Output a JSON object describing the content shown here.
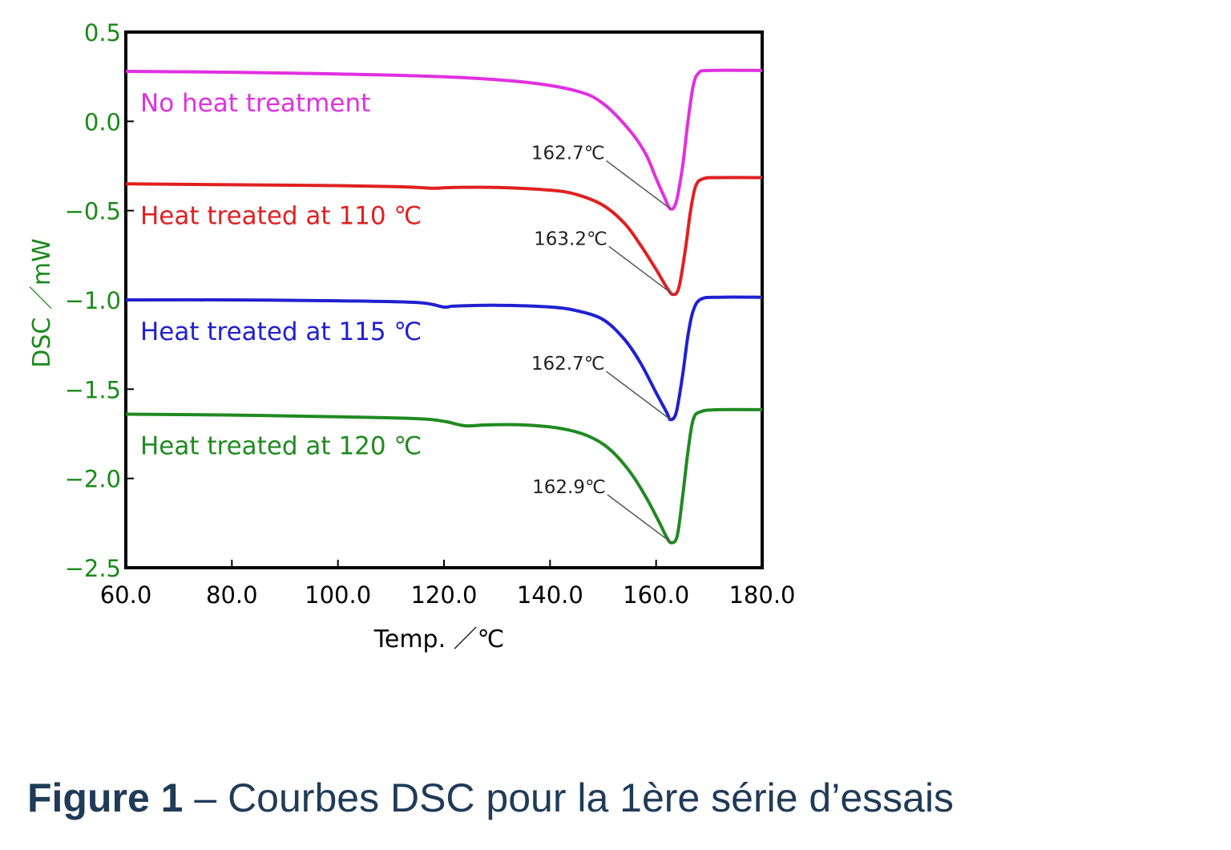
{
  "caption": {
    "bold": "Figure 1",
    "rest": " – Courbes DSC pour la 1ère série d’essais"
  },
  "chart_data": {
    "type": "line",
    "xlabel": "Temp. ／℃",
    "ylabel": "DSC ／mW",
    "xlim": [
      60,
      180
    ],
    "ylim": [
      -2.5,
      0.5
    ],
    "x_ticks": [
      60,
      80,
      100,
      120,
      140,
      160,
      180
    ],
    "x_tick_labels": [
      "60.0",
      "80.0",
      "100.0",
      "120.0",
      "140.0",
      "160.0",
      "180.0"
    ],
    "y_ticks": [
      0.5,
      0.0,
      -0.5,
      -1.0,
      -1.5,
      -2.0,
      -2.5
    ],
    "y_tick_labels": [
      "0.5",
      "0.0",
      "−0.5",
      "−1.0",
      "−1.5",
      "−2.0",
      "−2.5"
    ],
    "axis_color": "#1a8a1a",
    "grid": false,
    "series": [
      {
        "name": "No heat treatment",
        "color": "#e030e0",
        "points": [
          [
            60,
            0.28
          ],
          [
            80,
            0.275
          ],
          [
            100,
            0.265
          ],
          [
            120,
            0.25
          ],
          [
            135,
            0.22
          ],
          [
            145,
            0.17
          ],
          [
            150,
            0.1
          ],
          [
            155,
            -0.05
          ],
          [
            158,
            -0.18
          ],
          [
            160,
            -0.32
          ],
          [
            161.5,
            -0.42
          ],
          [
            162.7,
            -0.49
          ],
          [
            163.8,
            -0.45
          ],
          [
            165,
            -0.25
          ],
          [
            166,
            -0.0
          ],
          [
            167,
            0.2
          ],
          [
            168,
            0.27
          ],
          [
            170,
            0.285
          ],
          [
            180,
            0.285
          ]
        ],
        "peak": {
          "x": 162.7,
          "y": -0.49,
          "label": "162.7℃"
        }
      },
      {
        "name": "Heat treated at 110 ℃",
        "color": "#e02020",
        "points": [
          [
            60,
            -0.35
          ],
          [
            80,
            -0.355
          ],
          [
            100,
            -0.36
          ],
          [
            110,
            -0.365
          ],
          [
            115,
            -0.37
          ],
          [
            118,
            -0.375
          ],
          [
            122,
            -0.37
          ],
          [
            130,
            -0.37
          ],
          [
            140,
            -0.385
          ],
          [
            145,
            -0.41
          ],
          [
            150,
            -0.47
          ],
          [
            154,
            -0.57
          ],
          [
            157,
            -0.69
          ],
          [
            160,
            -0.83
          ],
          [
            162,
            -0.93
          ],
          [
            163.2,
            -0.97
          ],
          [
            164.3,
            -0.93
          ],
          [
            165.5,
            -0.72
          ],
          [
            166.5,
            -0.5
          ],
          [
            167.5,
            -0.36
          ],
          [
            169,
            -0.32
          ],
          [
            172,
            -0.315
          ],
          [
            180,
            -0.315
          ]
        ],
        "peak": {
          "x": 163.2,
          "y": -0.97,
          "label": "163.2℃"
        }
      },
      {
        "name": "Heat treated at 115 ℃",
        "color": "#2020d0",
        "points": [
          [
            60,
            -1.0
          ],
          [
            80,
            -1.0
          ],
          [
            100,
            -1.005
          ],
          [
            115,
            -1.015
          ],
          [
            120,
            -1.04
          ],
          [
            122,
            -1.035
          ],
          [
            130,
            -1.03
          ],
          [
            140,
            -1.04
          ],
          [
            145,
            -1.06
          ],
          [
            150,
            -1.11
          ],
          [
            154,
            -1.22
          ],
          [
            157,
            -1.35
          ],
          [
            160,
            -1.52
          ],
          [
            162,
            -1.63
          ],
          [
            162.7,
            -1.67
          ],
          [
            163.8,
            -1.63
          ],
          [
            165,
            -1.42
          ],
          [
            166,
            -1.2
          ],
          [
            167,
            -1.06
          ],
          [
            168.5,
            -0.995
          ],
          [
            172,
            -0.985
          ],
          [
            180,
            -0.985
          ]
        ],
        "peak": {
          "x": 162.7,
          "y": -1.67,
          "label": "162.7℃"
        }
      },
      {
        "name": "Heat treated at 120 ℃",
        "color": "#208a20",
        "points": [
          [
            60,
            -1.64
          ],
          [
            80,
            -1.645
          ],
          [
            100,
            -1.655
          ],
          [
            115,
            -1.665
          ],
          [
            120,
            -1.68
          ],
          [
            124,
            -1.705
          ],
          [
            128,
            -1.7
          ],
          [
            135,
            -1.7
          ],
          [
            142,
            -1.72
          ],
          [
            147,
            -1.76
          ],
          [
            151,
            -1.83
          ],
          [
            155,
            -1.96
          ],
          [
            158,
            -2.1
          ],
          [
            160.5,
            -2.24
          ],
          [
            162,
            -2.33
          ],
          [
            162.9,
            -2.36
          ],
          [
            164,
            -2.32
          ],
          [
            165,
            -2.1
          ],
          [
            166,
            -1.85
          ],
          [
            167,
            -1.67
          ],
          [
            168.5,
            -1.625
          ],
          [
            172,
            -1.615
          ],
          [
            180,
            -1.615
          ]
        ],
        "peak": {
          "x": 162.9,
          "y": -2.36,
          "label": "162.9℃"
        }
      }
    ]
  }
}
